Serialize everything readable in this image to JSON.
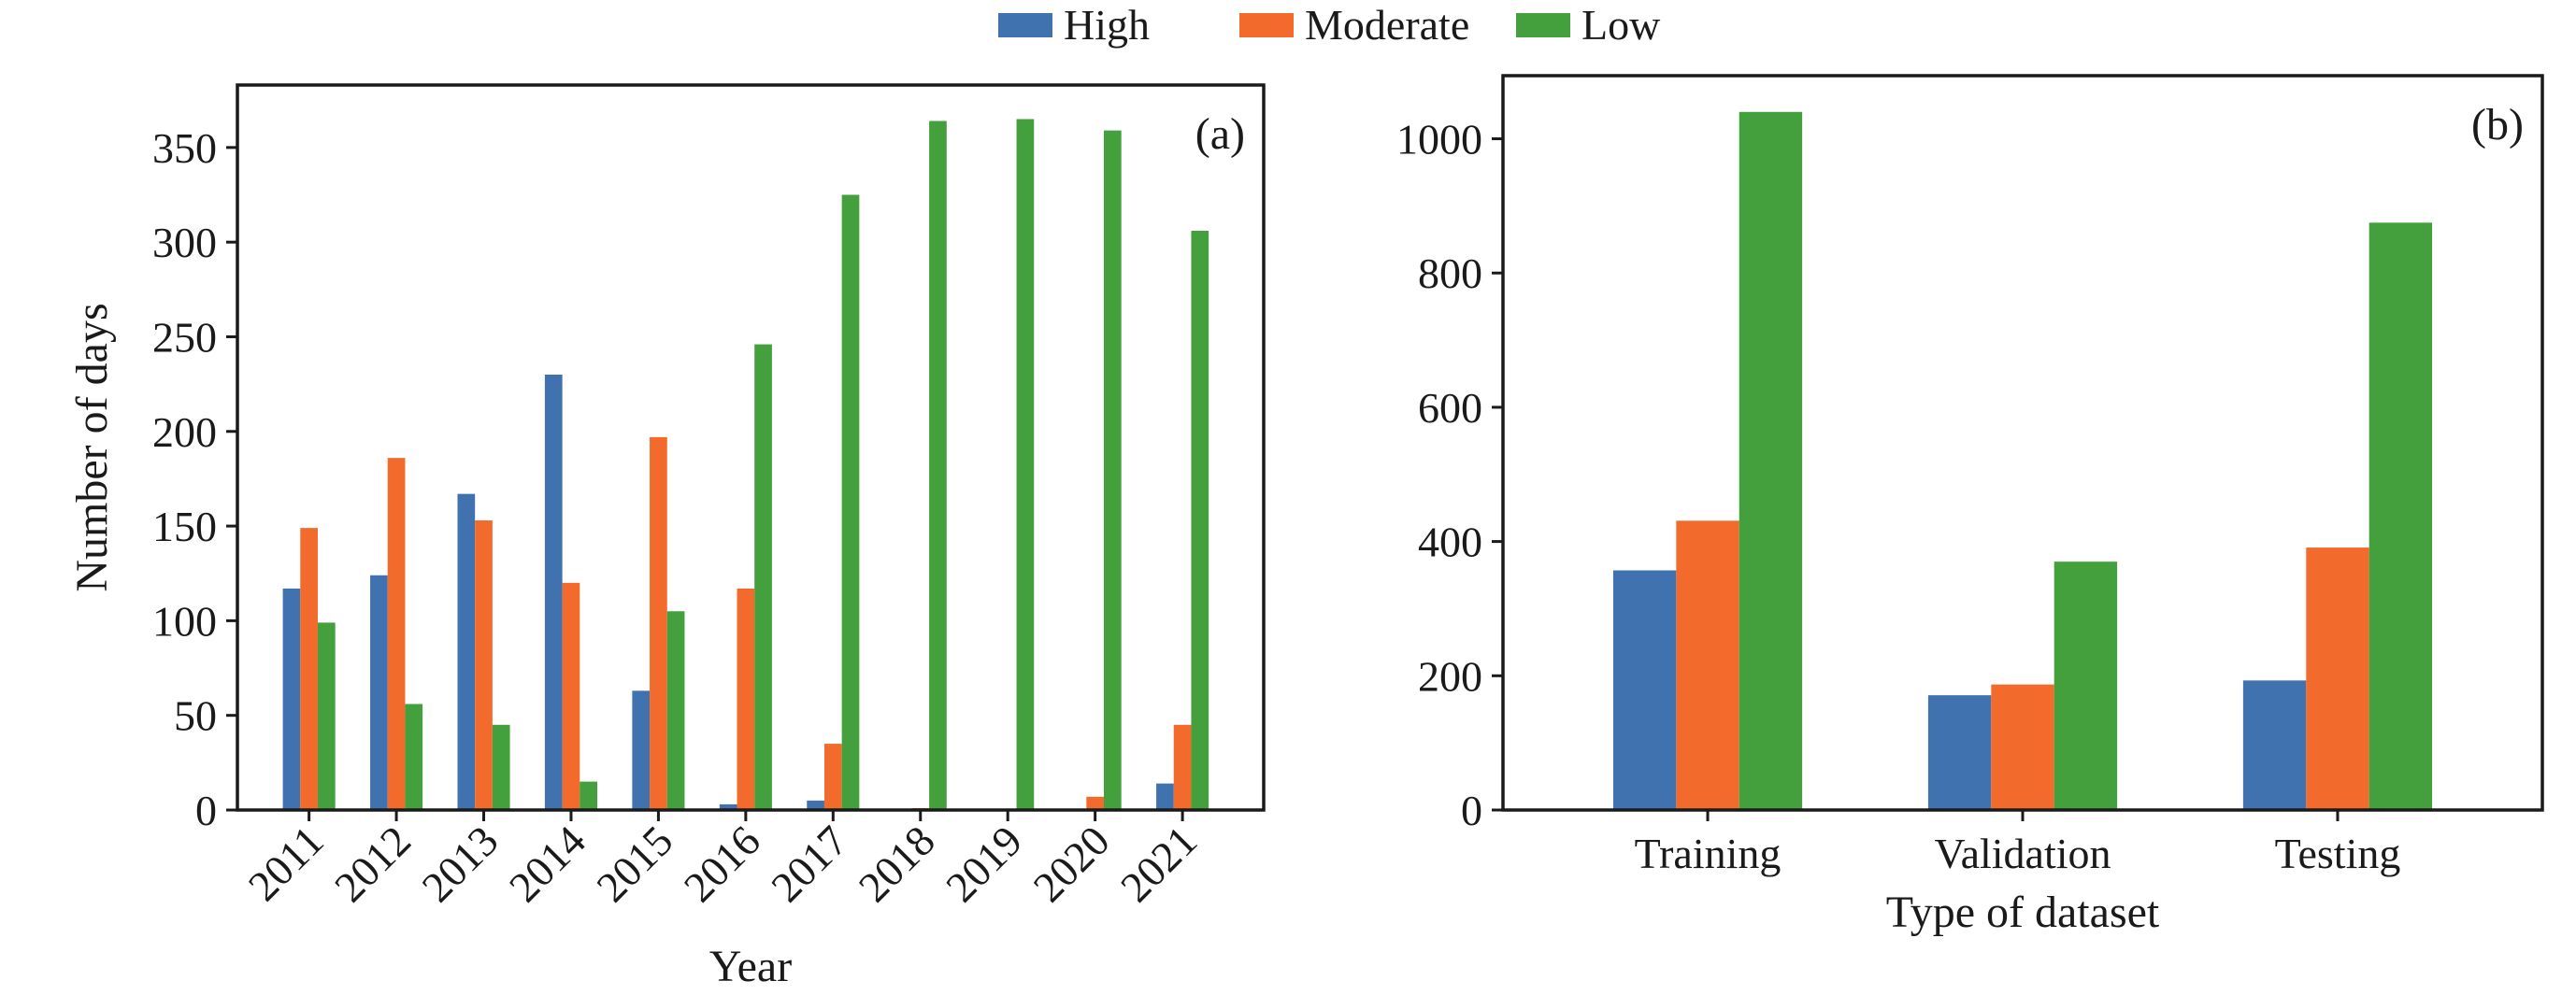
{
  "legend": {
    "placement": "top-center",
    "entries": [
      {
        "label": "High",
        "color": "#3f72af"
      },
      {
        "label": "Moderate",
        "color": "#f26b2c"
      },
      {
        "label": "Low",
        "color": "#43a03c"
      }
    ]
  },
  "chart_data": [
    {
      "type": "bar",
      "panel_label": "(a)",
      "title": "",
      "xlabel": "Year",
      "ylabel": "Number of days",
      "categories": [
        "2011",
        "2012",
        "2013",
        "2014",
        "2015",
        "2016",
        "2017",
        "2018",
        "2019",
        "2020",
        "2021"
      ],
      "series": [
        {
          "name": "High",
          "color": "#3f72af",
          "values": [
            117,
            124,
            167,
            230,
            63,
            3,
            5,
            0,
            0,
            0,
            14
          ]
        },
        {
          "name": "Moderate",
          "color": "#f26b2c",
          "values": [
            149,
            186,
            153,
            120,
            197,
            117,
            35,
            1,
            0,
            7,
            45
          ]
        },
        {
          "name": "Low",
          "color": "#43a03c",
          "values": [
            99,
            56,
            45,
            15,
            105,
            246,
            325,
            364,
            365,
            359,
            306
          ]
        }
      ],
      "ylim": [
        0,
        383
      ],
      "yticks": [
        0,
        50,
        100,
        150,
        200,
        250,
        300,
        350
      ],
      "xtick_rotation": 45,
      "grid": false
    },
    {
      "type": "bar",
      "panel_label": "(b)",
      "title": "",
      "xlabel": "Type of dataset",
      "ylabel": "",
      "categories": [
        "Training",
        "Validation",
        "Testing"
      ],
      "series": [
        {
          "name": "High",
          "color": "#3f72af",
          "values": [
            357,
            171,
            193
          ]
        },
        {
          "name": "Moderate",
          "color": "#f26b2c",
          "values": [
            431,
            187,
            391
          ]
        },
        {
          "name": "Low",
          "color": "#43a03c",
          "values": [
            1040,
            370,
            875
          ]
        }
      ],
      "ylim": [
        0,
        1094
      ],
      "yticks": [
        0,
        200,
        400,
        600,
        800,
        1000
      ],
      "xtick_rotation": 0,
      "grid": false
    }
  ]
}
